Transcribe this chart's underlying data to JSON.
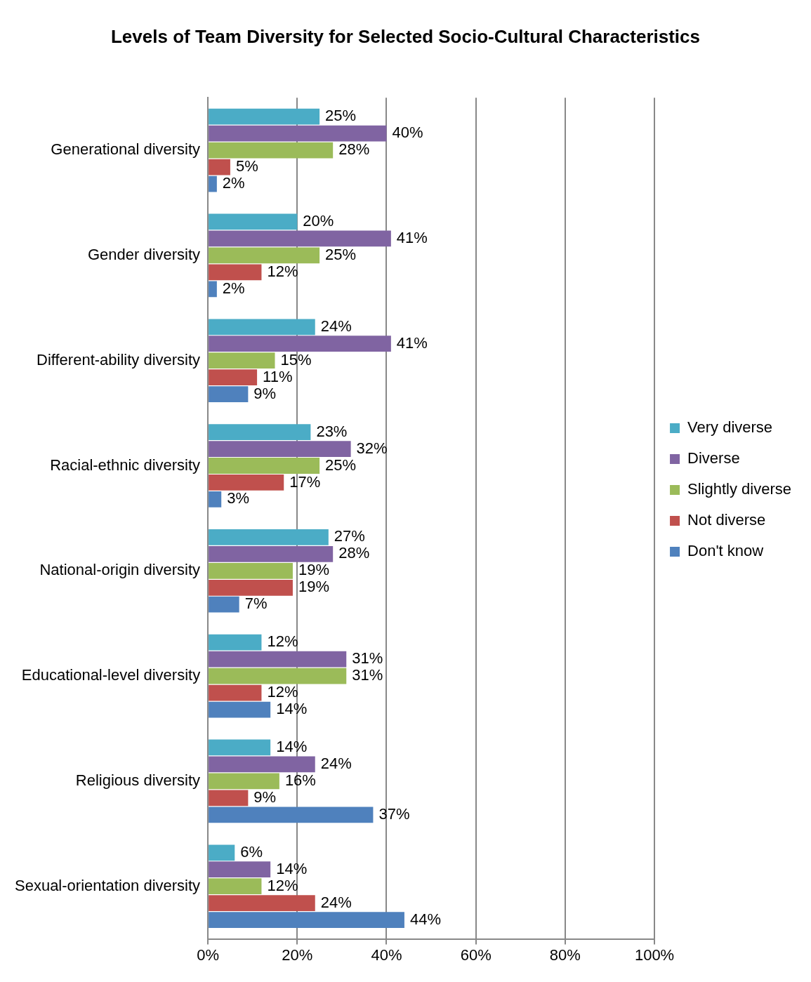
{
  "chart_data": {
    "type": "bar",
    "orientation": "horizontal",
    "title": "Levels of Team Diversity for Selected Socio-Cultural Characteristics",
    "categories": [
      "Generational diversity",
      "Gender diversity",
      "Different-ability diversity",
      "Racial-ethnic diversity",
      "National-origin diversity",
      "Educational-level diversity",
      "Religious diversity",
      "Sexual-orientation diversity"
    ],
    "series": [
      {
        "name": "Very diverse",
        "color": "#4bacc6",
        "values": [
          25,
          20,
          24,
          23,
          27,
          12,
          14,
          6
        ],
        "value_labels": [
          "25%",
          "20%",
          "24%",
          "23%",
          "27%",
          "12%",
          "14%",
          "6%"
        ]
      },
      {
        "name": "Diverse",
        "color": "#8064a2",
        "values": [
          40,
          41,
          41,
          32,
          28,
          31,
          24,
          14
        ],
        "value_labels": [
          "40%",
          "41%",
          "41%",
          "32%",
          "28%",
          "31%",
          "24%",
          "14%"
        ]
      },
      {
        "name": "Slightly diverse",
        "color": "#9bbb59",
        "values": [
          28,
          25,
          15,
          25,
          19,
          31,
          16,
          12
        ],
        "value_labels": [
          "28%",
          "25%",
          "15%",
          "25%",
          "19%",
          "31%",
          "16%",
          "12%"
        ]
      },
      {
        "name": "Not diverse",
        "color": "#c0504d",
        "values": [
          5,
          12,
          11,
          17,
          19,
          12,
          9,
          24
        ],
        "value_labels": [
          "5%",
          "12%",
          "11%",
          "17%",
          "19%",
          "12%",
          "9%",
          "24%"
        ]
      },
      {
        "name": "Don't know",
        "color": "#4f81bd",
        "values": [
          2,
          2,
          9,
          3,
          7,
          14,
          37,
          44
        ],
        "value_labels": [
          "2%",
          "2%",
          "9%",
          "3%",
          "7%",
          "14%",
          "37%",
          "44%"
        ]
      }
    ],
    "xlim": [
      0,
      100
    ],
    "xticks": [
      {
        "value": 0,
        "label": "0%"
      },
      {
        "value": 20,
        "label": "20%"
      },
      {
        "value": 40,
        "label": "40%"
      },
      {
        "value": 60,
        "label": "60%"
      },
      {
        "value": 80,
        "label": "80%"
      },
      {
        "value": 100,
        "label": "100%"
      }
    ],
    "grid": "x",
    "legend": "right"
  }
}
